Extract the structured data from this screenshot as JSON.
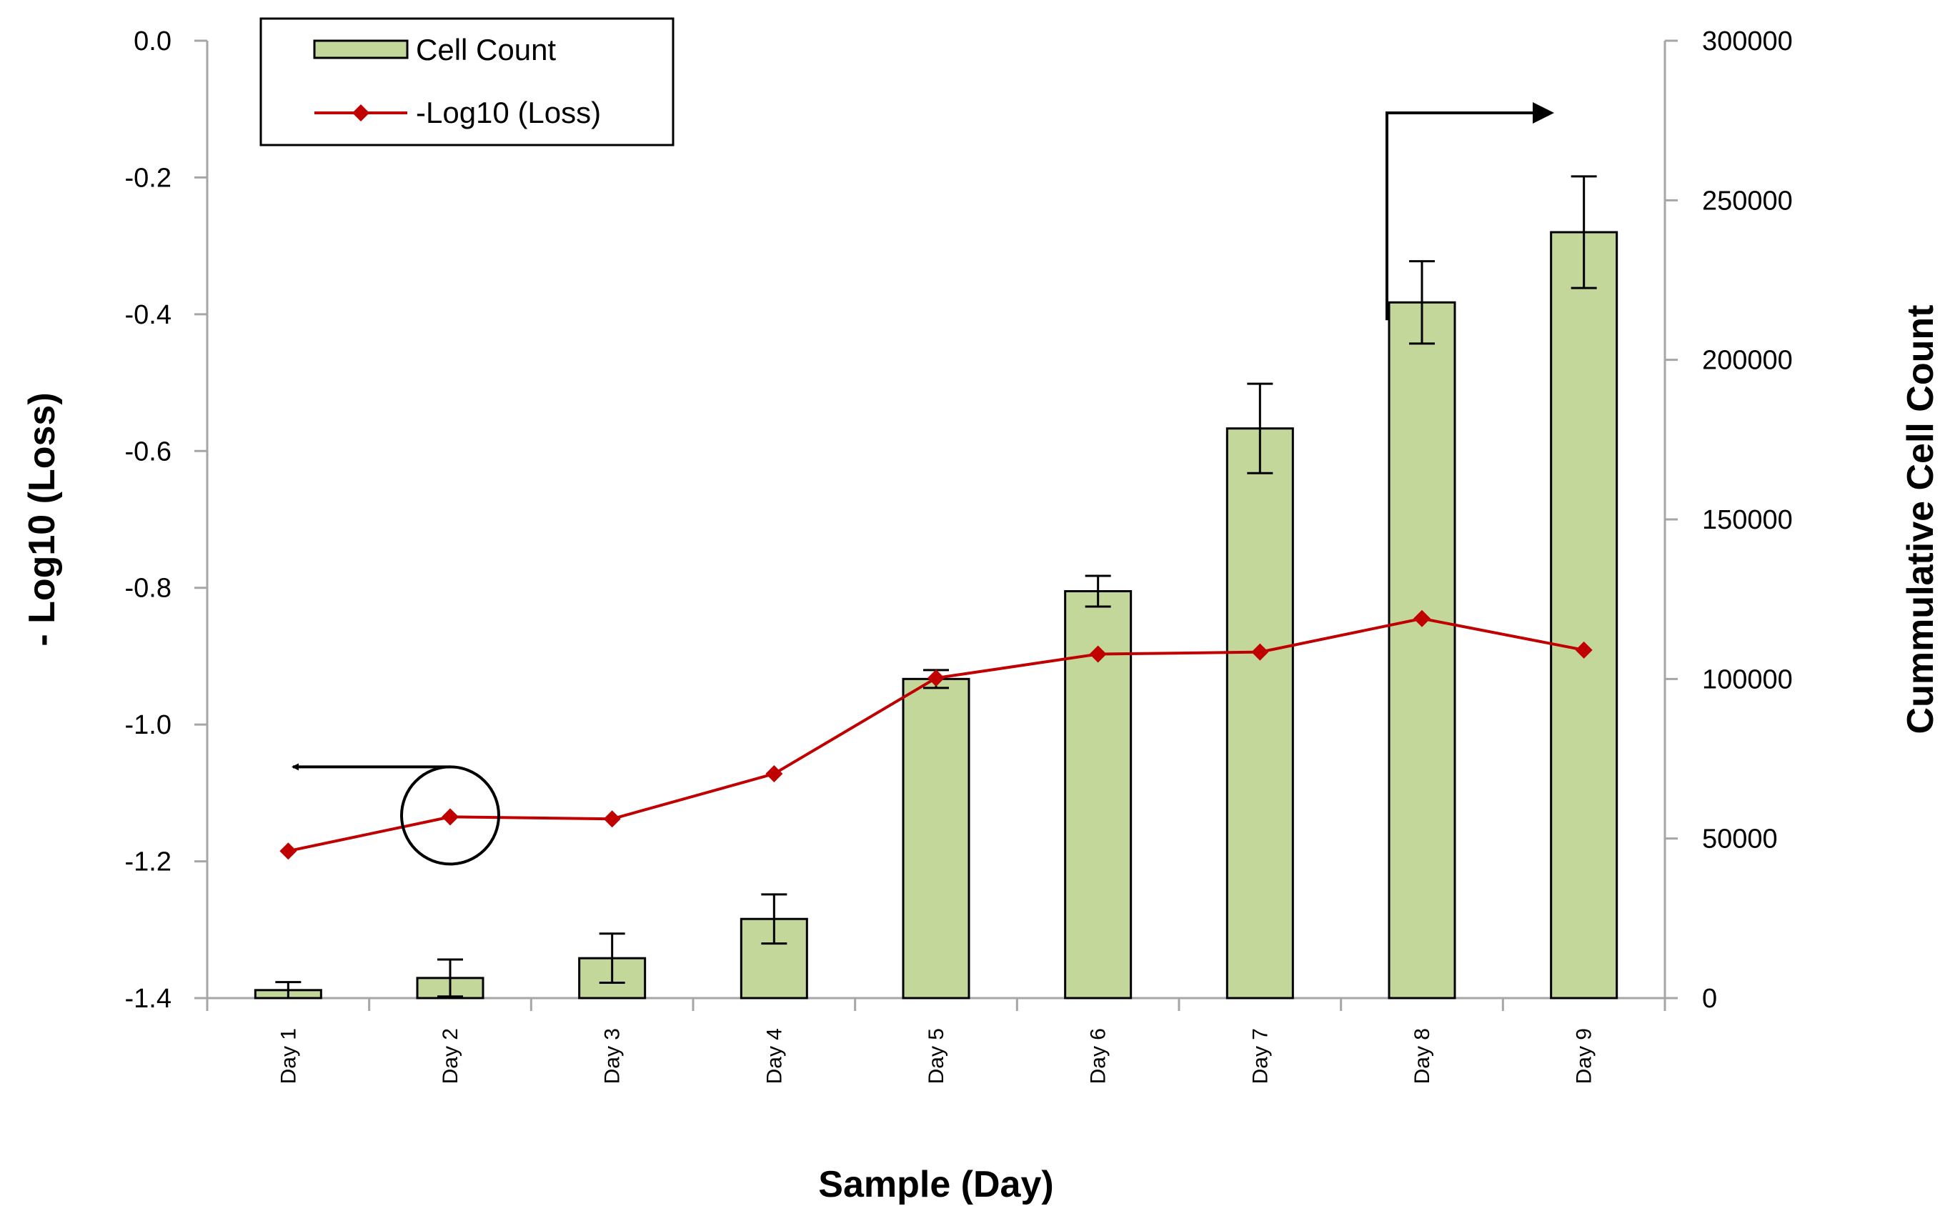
{
  "chart_data": {
    "type": "bar+line",
    "title": "",
    "xlabel": "Sample (Day)",
    "categories": [
      "Day 1",
      "Day 2",
      "Day 3",
      "Day 4",
      "Day 5",
      "Day 6",
      "Day 7",
      "Day 8",
      "Day 9"
    ],
    "series": [
      {
        "name": "Cell Count",
        "type": "bar",
        "axis": "right",
        "values": [
          2500,
          6300,
          12500,
          24800,
          100000,
          127500,
          178500,
          218000,
          240000
        ],
        "error": [
          2500,
          5800,
          7700,
          7700,
          2800,
          4800,
          14000,
          12900,
          17500
        ]
      },
      {
        "name": "-Log10 (Loss)",
        "type": "line",
        "axis": "left",
        "marker": "diamond",
        "values": [
          -1.185,
          -1.135,
          -1.138,
          -1.072,
          -0.932,
          -0.897,
          -0.894,
          -0.845,
          -0.891
        ]
      }
    ],
    "ylabel": "- Log10 (Loss)",
    "ylim": [
      -1.4,
      0.0
    ],
    "yticks": [
      "-1.4",
      "-1.2",
      "-1.0",
      "-0.8",
      "-0.6",
      "-0.4",
      "-0.2",
      "0.0"
    ],
    "y2label": "Cummulative Cell Count",
    "y2lim": [
      0,
      300000
    ],
    "y2ticks": [
      "0",
      "50000",
      "100000",
      "150000",
      "200000",
      "250000",
      "300000"
    ],
    "legend_position": "top-left",
    "grid": false,
    "annotations": [
      {
        "type": "circle-arrow",
        "target": "Day 2 -Log10 (Loss) point",
        "points_to": "left axis"
      },
      {
        "type": "arrow",
        "target": "Day 8 Cell Count bar",
        "points_to": "right axis"
      }
    ],
    "colors": {
      "bar_fill": "#c4d79b",
      "bar_stroke": "#000000",
      "line": "#c00000",
      "axis": "#a6a6a6"
    }
  }
}
